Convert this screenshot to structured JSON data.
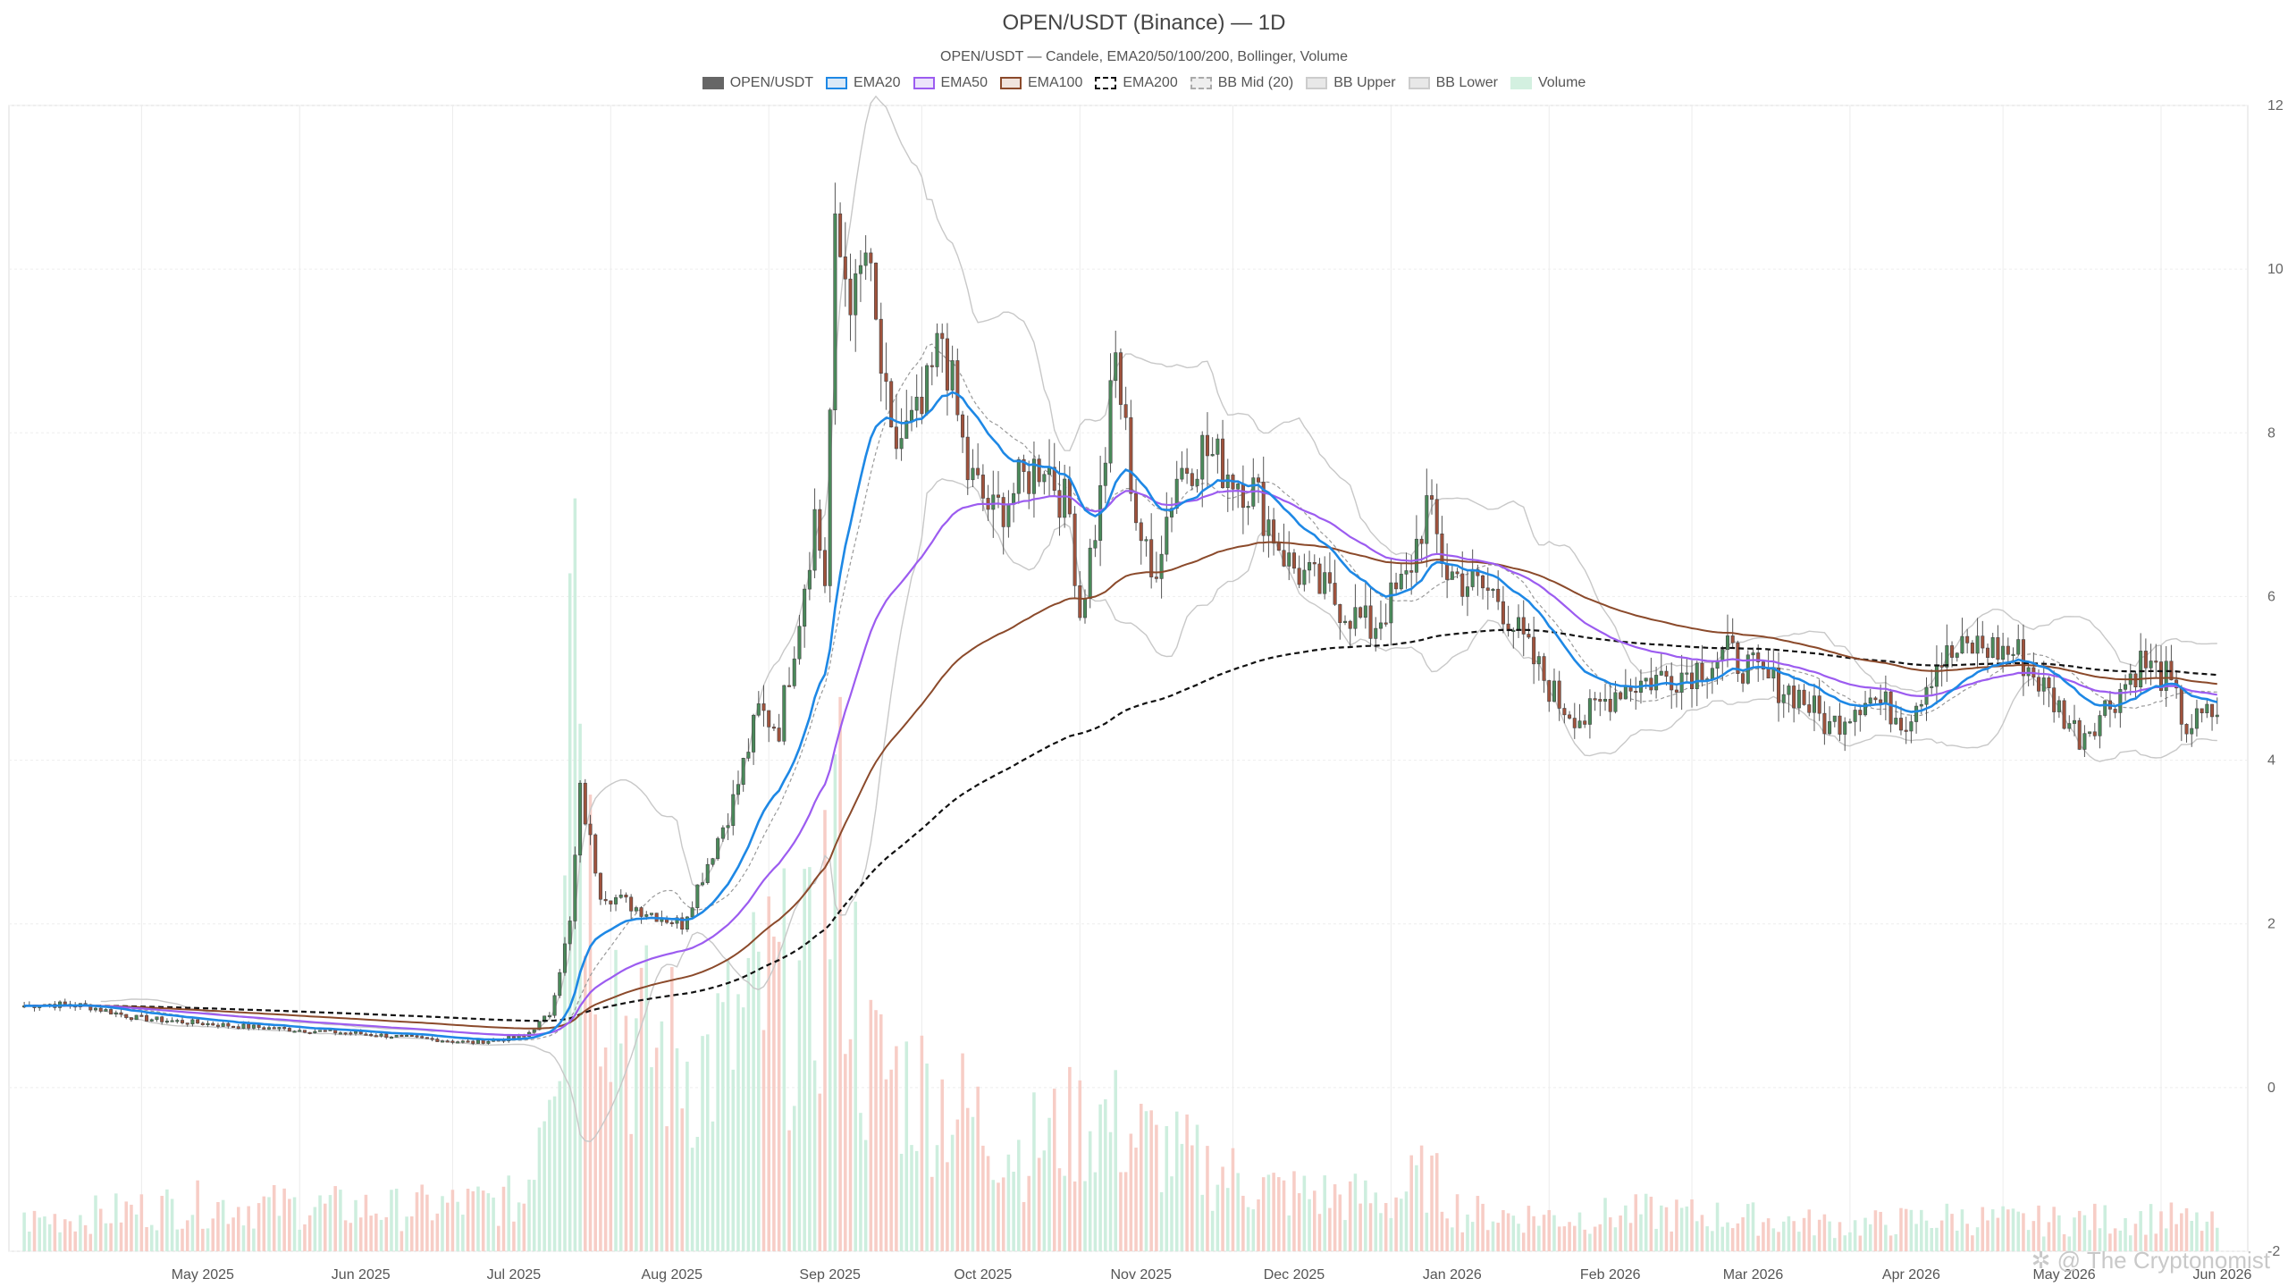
{
  "title": "OPEN/USDT (Binance) — 1D",
  "subtitle": "OPEN/USDT — Candele, EMA20/50/100/200, Bollinger, Volume",
  "watermark": "✲ @ The Cryptonomist",
  "legend": [
    {
      "label": "OPEN/USDT",
      "color": "#666666",
      "fill": "#666666",
      "dash": false
    },
    {
      "label": "EMA20",
      "color": "#1e88e5",
      "fill": "#dbe9f7",
      "dash": false
    },
    {
      "label": "EMA50",
      "color": "#9c5cf0",
      "fill": "#ece4fb",
      "dash": false
    },
    {
      "label": "EMA100",
      "color": "#8b4a2b",
      "fill": "#f1e4dd",
      "dash": false
    },
    {
      "label": "EMA200",
      "color": "#111111",
      "fill": "#ffffff",
      "dash": true
    },
    {
      "label": "BB Mid (20)",
      "color": "#aaaaaa",
      "fill": "#eeeeee",
      "dash": true
    },
    {
      "label": "BB Upper",
      "color": "#cccccc",
      "fill": "#e8e8e8",
      "dash": false
    },
    {
      "label": "BB Lower",
      "color": "#cccccc",
      "fill": "#e8e8e8",
      "dash": false
    },
    {
      "label": "Volume",
      "color": "#d3f0e0",
      "fill": "#d3f0e0",
      "dash": false
    }
  ],
  "chart_data": {
    "type": "candlestick",
    "y_axis": {
      "position": "right",
      "ylim": [
        -2,
        12
      ],
      "ticks": [
        12,
        10,
        8,
        6,
        4,
        2,
        0,
        -2
      ]
    },
    "x_axis": {
      "labels": [
        "May 2025",
        "Jun 2025",
        "Jul 2025",
        "Aug 2025",
        "Sep 2025",
        "Oct 2025",
        "Nov 2025",
        "Dec 2025",
        "Jan 2026",
        "Feb 2026",
        "Mar 2026",
        "Apr 2026",
        "May 2026",
        "Jun 2026"
      ]
    },
    "colors": {
      "up": "#4a8a5a",
      "down": "#a0523c",
      "vol_up": "#cdeede",
      "vol_down": "#f7cdc6",
      "ema20": "#1e88e5",
      "ema50": "#9c5cf0",
      "ema100": "#8b4a2b",
      "ema200": "#111111",
      "bb_mid": "#999999",
      "bb_band": "#c8c8c8"
    },
    "close_anchors": [
      [
        "2025-04-08",
        1.0
      ],
      [
        "2025-04-12",
        1.02
      ],
      [
        "2025-04-20",
        1.0
      ],
      [
        "2025-04-30",
        0.85
      ],
      [
        "2025-05-20",
        0.75
      ],
      [
        "2025-06-15",
        0.65
      ],
      [
        "2025-07-05",
        0.55
      ],
      [
        "2025-07-15",
        0.62
      ],
      [
        "2025-07-20",
        0.9
      ],
      [
        "2025-07-24",
        2.0
      ],
      [
        "2025-07-26",
        3.6
      ],
      [
        "2025-07-30",
        2.4
      ],
      [
        "2025-08-06",
        2.2
      ],
      [
        "2025-08-15",
        2.0
      ],
      [
        "2025-08-25",
        3.5
      ],
      [
        "2025-08-30",
        4.6
      ],
      [
        "2025-09-03",
        4.4
      ],
      [
        "2025-09-07",
        5.8
      ],
      [
        "2025-09-10",
        7.0
      ],
      [
        "2025-09-12",
        6.2
      ],
      [
        "2025-09-14",
        10.3
      ],
      [
        "2025-09-18",
        9.6
      ],
      [
        "2025-09-20",
        10.2
      ],
      [
        "2025-09-25",
        7.8
      ],
      [
        "2025-10-01",
        8.2
      ],
      [
        "2025-10-05",
        9.2
      ],
      [
        "2025-10-10",
        7.5
      ],
      [
        "2025-10-15",
        7.0
      ],
      [
        "2025-10-25",
        7.7
      ],
      [
        "2025-10-30",
        7.0
      ],
      [
        "2025-11-01",
        5.8
      ],
      [
        "2025-11-05",
        7.2
      ],
      [
        "2025-11-08",
        8.9
      ],
      [
        "2025-11-12",
        7.0
      ],
      [
        "2025-11-15",
        6.2
      ],
      [
        "2025-11-20",
        7.5
      ],
      [
        "2025-11-25",
        7.8
      ],
      [
        "2025-12-01",
        7.5
      ],
      [
        "2025-12-05",
        7.3
      ],
      [
        "2025-12-12",
        6.4
      ],
      [
        "2025-12-20",
        6.0
      ],
      [
        "2025-12-28",
        5.6
      ],
      [
        "2026-01-04",
        6.2
      ],
      [
        "2026-01-08",
        7.1
      ],
      [
        "2026-01-12",
        6.3
      ],
      [
        "2026-01-22",
        6.0
      ],
      [
        "2026-01-28",
        5.3
      ],
      [
        "2026-02-03",
        4.7
      ],
      [
        "2026-02-08",
        4.5
      ],
      [
        "2026-02-15",
        4.9
      ],
      [
        "2026-02-22",
        5.0
      ],
      [
        "2026-03-01",
        5.1
      ],
      [
        "2026-03-08",
        5.3
      ],
      [
        "2026-03-15",
        5.0
      ],
      [
        "2026-03-22",
        4.8
      ],
      [
        "2026-03-28",
        4.4
      ],
      [
        "2026-04-04",
        4.8
      ],
      [
        "2026-04-12",
        4.5
      ],
      [
        "2026-04-18",
        5.2
      ],
      [
        "2026-04-26",
        5.4
      ],
      [
        "2026-05-04",
        5.3
      ],
      [
        "2026-05-10",
        4.8
      ],
      [
        "2026-05-16",
        4.3
      ],
      [
        "2026-05-22",
        4.7
      ],
      [
        "2026-05-28",
        5.2
      ],
      [
        "2026-06-02",
        5.0
      ],
      [
        "2026-06-06",
        4.4
      ],
      [
        "2026-06-12",
        4.6
      ]
    ],
    "volume_anchors": [
      [
        "2025-04-08",
        0.35
      ],
      [
        "2025-05-10",
        0.55
      ],
      [
        "2025-06-20",
        0.5
      ],
      [
        "2025-07-15",
        0.6
      ],
      [
        "2025-07-22",
        3.2
      ],
      [
        "2025-07-24",
        10.5
      ],
      [
        "2025-07-28",
        4.5
      ],
      [
        "2025-08-05",
        2.5
      ],
      [
        "2025-08-20",
        2.2
      ],
      [
        "2025-09-01",
        3.0
      ],
      [
        "2025-09-10",
        3.0
      ],
      [
        "2025-09-14",
        5.0
      ],
      [
        "2025-09-20",
        2.2
      ],
      [
        "2025-10-05",
        1.8
      ],
      [
        "2025-10-20",
        1.2
      ],
      [
        "2025-11-05",
        1.6
      ],
      [
        "2025-11-10",
        1.4
      ],
      [
        "2025-11-25",
        1.0
      ],
      [
        "2025-12-10",
        0.7
      ],
      [
        "2026-01-01",
        0.6
      ],
      [
        "2026-01-08",
        0.9
      ],
      [
        "2026-01-15",
        0.45
      ],
      [
        "2026-02-05",
        0.4
      ],
      [
        "2026-02-20",
        0.45
      ],
      [
        "2026-03-10",
        0.4
      ],
      [
        "2026-04-01",
        0.3
      ],
      [
        "2026-04-20",
        0.4
      ],
      [
        "2026-05-05",
        0.35
      ],
      [
        "2026-06-01",
        0.4
      ],
      [
        "2026-06-12",
        0.3
      ]
    ],
    "volume_max": 11.5
  }
}
